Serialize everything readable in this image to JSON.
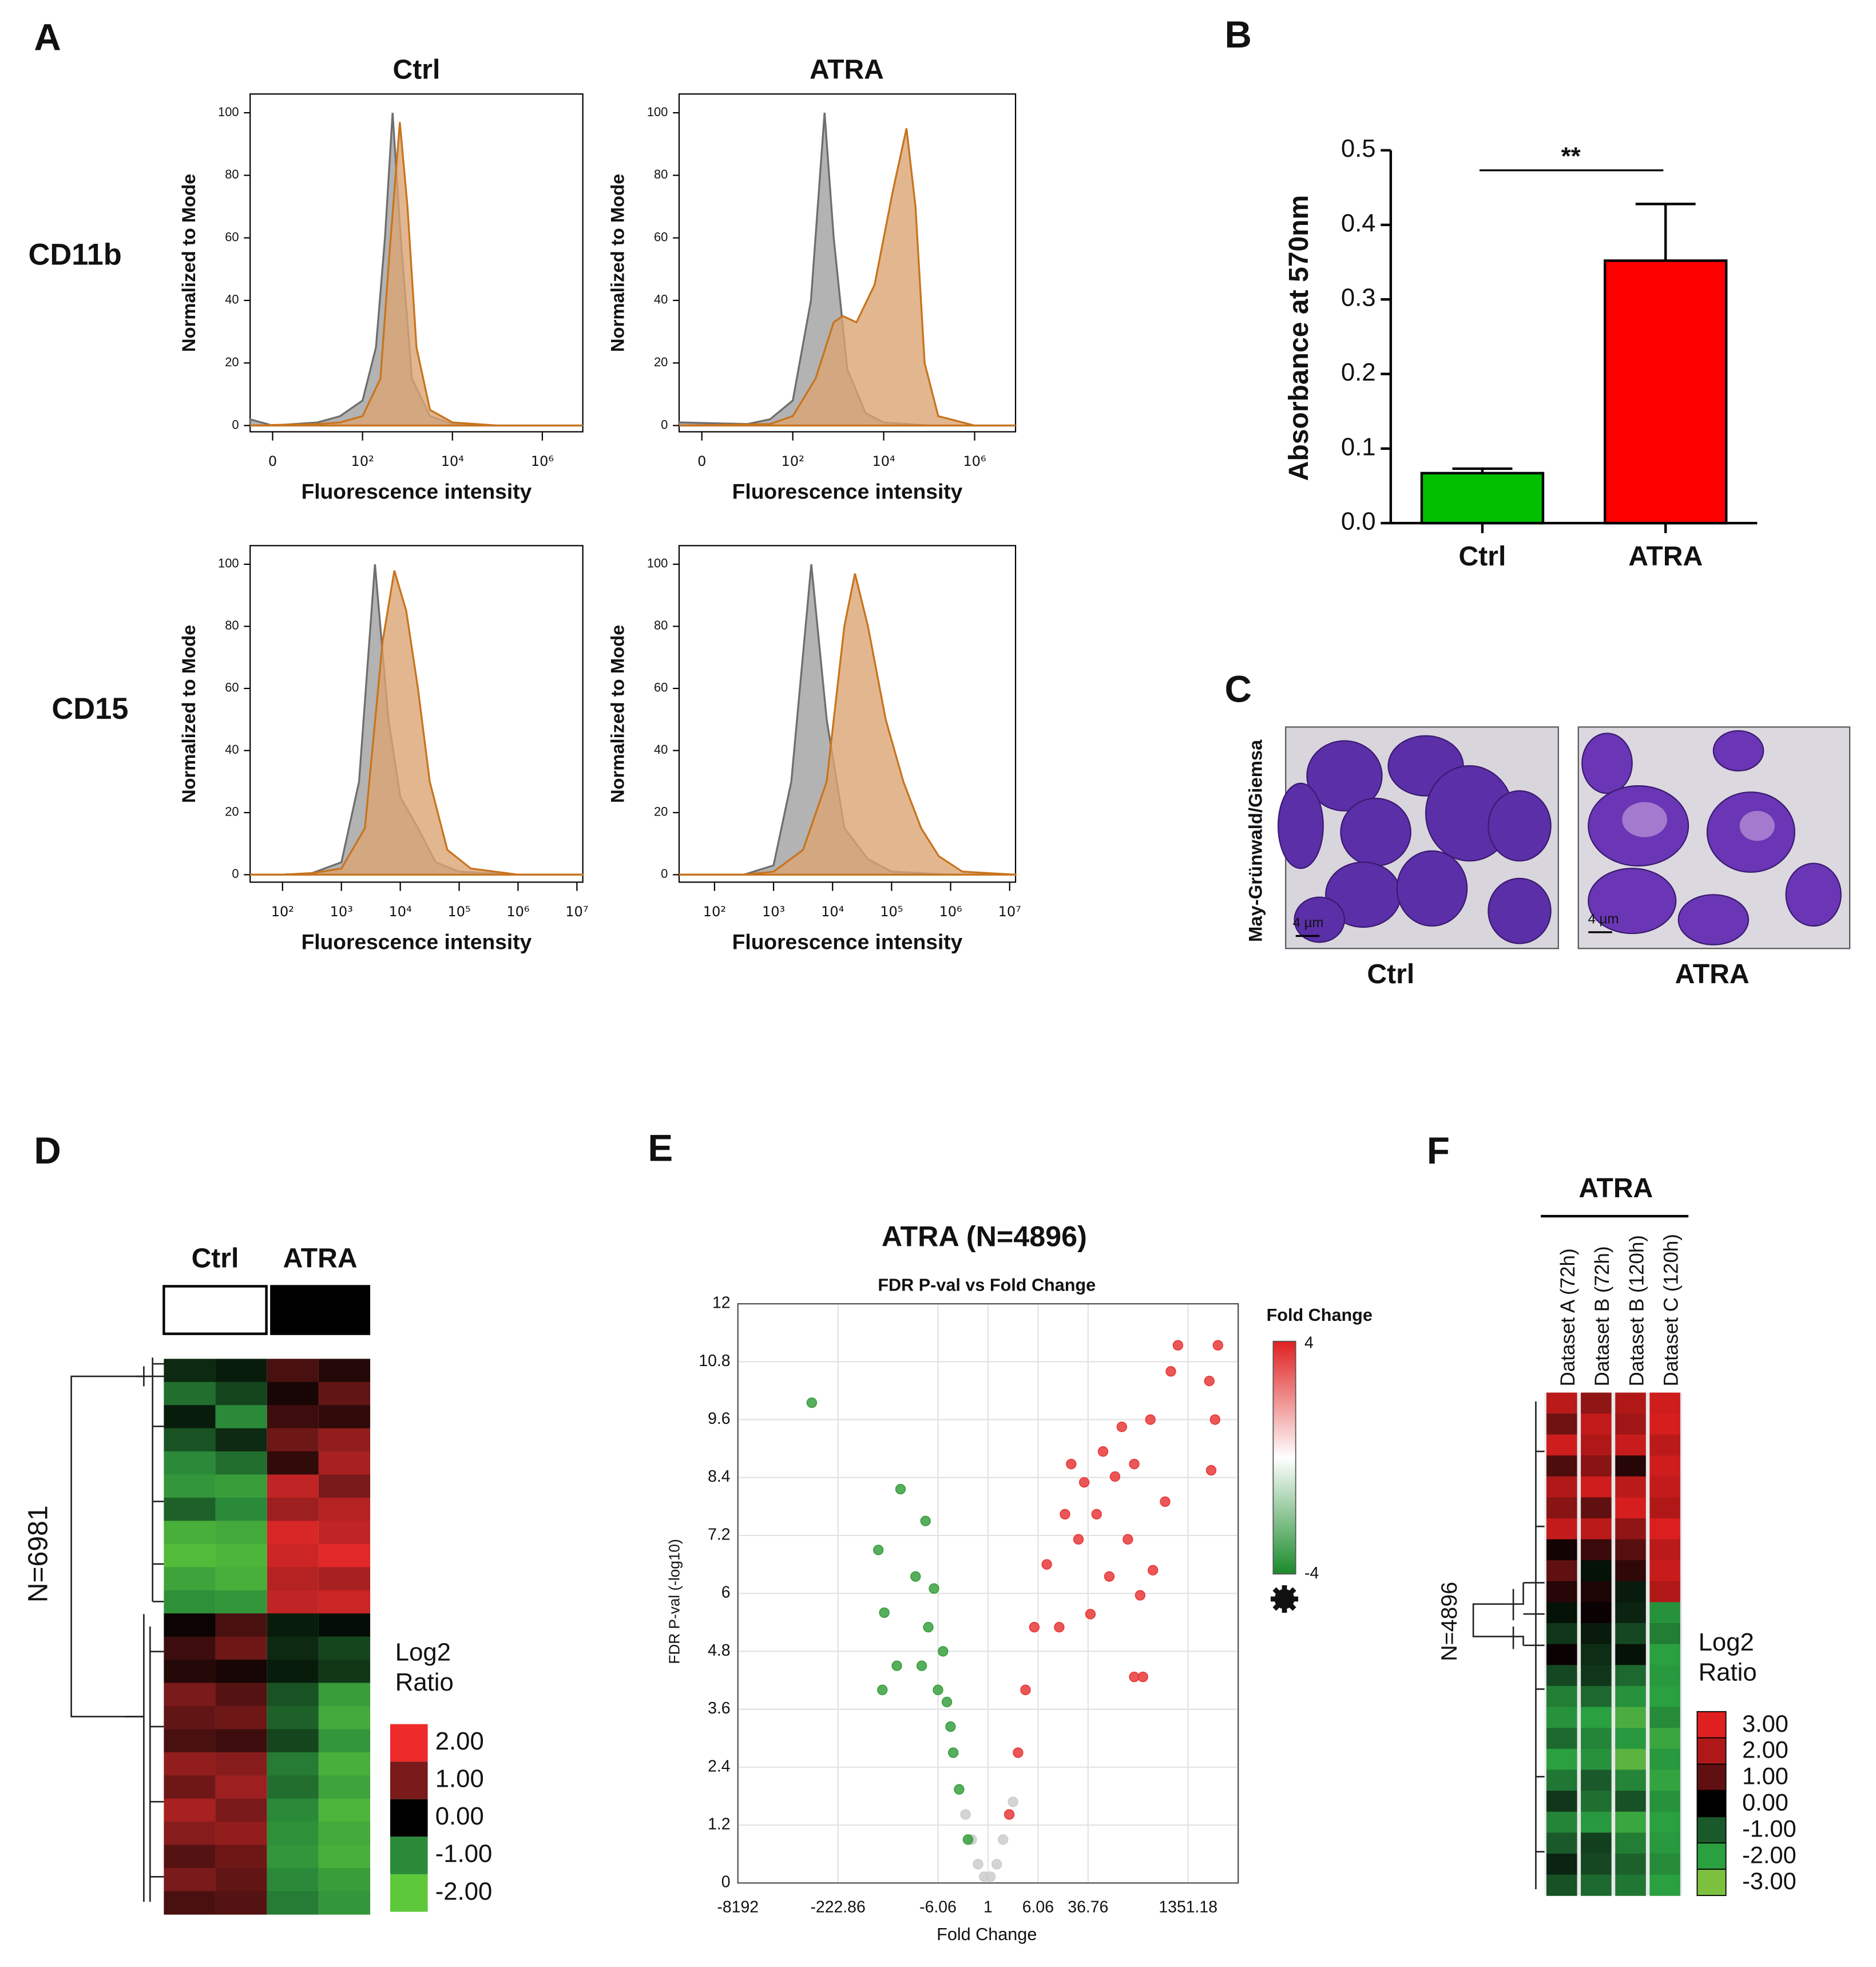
{
  "panel_labels": [
    "A",
    "B",
    "C",
    "D",
    "E",
    "F"
  ],
  "panel_a": {
    "columns": [
      "Ctrl",
      "ATRA"
    ],
    "rows": [
      "CD11b",
      "CD15"
    ]
  },
  "panel_c": {
    "ylabel": "May-Grünwald/Giemsa",
    "images": [
      {
        "label": "Ctrl",
        "scale_bar": "4 µm"
      },
      {
        "label": "ATRA",
        "scale_bar": "4 µm"
      }
    ]
  },
  "chart_data": [
    {
      "type": "density",
      "xlabel": "Fluorescence intensity",
      "ylabel": "Normalized to Mode",
      "xlim": [
        -0.5,
        6.9
      ],
      "ylim": [
        -2,
        106
      ],
      "xticks": [
        0,
        {
          "value": 2,
          "label": "10²"
        },
        {
          "value": 4,
          "label": "10⁴"
        },
        {
          "value": 6,
          "label": "10⁶"
        }
      ],
      "yticks": [
        0,
        20,
        40,
        60,
        80,
        100
      ],
      "series": [
        {
          "color": "#6e6e6e",
          "fill": "#a0a0a0",
          "x": [
            -0.5,
            0,
            1,
            1.5,
            2,
            2.3,
            2.5,
            2.67,
            2.85,
            3.1,
            3.5,
            4,
            5,
            6.9
          ],
          "values": [
            2,
            0,
            1,
            3,
            8,
            25,
            60,
            100,
            60,
            15,
            3,
            0.5,
            0,
            0
          ]
        },
        {
          "color": "#c8741e",
          "fill": "#dba574",
          "x": [
            -0.5,
            1,
            1.5,
            2,
            2.4,
            2.6,
            2.83,
            3,
            3.2,
            3.5,
            4,
            5,
            6.9
          ],
          "values": [
            0,
            0.5,
            1,
            3,
            15,
            55,
            97,
            70,
            25,
            5,
            1,
            0,
            0
          ]
        }
      ]
    },
    {
      "type": "density",
      "xlabel": "Fluorescence intensity",
      "ylabel": "Normalized to Mode",
      "xlim": [
        -0.5,
        6.9
      ],
      "ylim": [
        -2,
        106
      ],
      "xticks": [
        0,
        {
          "value": 2,
          "label": "10²"
        },
        {
          "value": 4,
          "label": "10⁴"
        },
        {
          "value": 6,
          "label": "10⁶"
        }
      ],
      "yticks": [
        0,
        20,
        40,
        60,
        80,
        100
      ],
      "series": [
        {
          "color": "#6e6e6e",
          "fill": "#a0a0a0",
          "x": [
            -0.5,
            1,
            1.5,
            2,
            2.4,
            2.7,
            2.9,
            3.2,
            3.6,
            4,
            5,
            6.9
          ],
          "values": [
            1,
            0.5,
            2,
            8,
            40,
            100,
            60,
            18,
            4,
            1,
            0,
            0
          ]
        },
        {
          "color": "#c8741e",
          "fill": "#dba574",
          "x": [
            -0.5,
            1.5,
            2,
            2.5,
            2.9,
            3.1,
            3.4,
            3.8,
            4.2,
            4.5,
            4.7,
            4.9,
            5.2,
            6,
            6.9
          ],
          "values": [
            0,
            0.5,
            3,
            15,
            33,
            35,
            33,
            45,
            75,
            95,
            70,
            20,
            3,
            0,
            0
          ]
        }
      ]
    },
    {
      "type": "density",
      "xlabel": "Fluorescence intensity",
      "ylabel": "Normalized to Mode",
      "xlim": [
        1.45,
        7.1
      ],
      "ylim": [
        -2.4,
        106
      ],
      "xticks": [
        {
          "value": 2,
          "label": "10²"
        },
        {
          "value": 3,
          "label": "10³"
        },
        {
          "value": 4,
          "label": "10⁴"
        },
        {
          "value": 5,
          "label": "10⁵"
        },
        {
          "value": 6,
          "label": "10⁶"
        },
        {
          "value": 7,
          "label": "10⁷"
        }
      ],
      "yticks": [
        0,
        20,
        40,
        60,
        80,
        100
      ],
      "series": [
        {
          "color": "#6e6e6e",
          "fill": "#a0a0a0",
          "x": [
            1.45,
            2,
            2.5,
            3,
            3.3,
            3.57,
            3.8,
            4,
            4.3,
            4.6,
            5,
            6,
            7.1
          ],
          "values": [
            0,
            0,
            0.5,
            4,
            30,
            100,
            50,
            25,
            15,
            4,
            1,
            0,
            0
          ]
        },
        {
          "color": "#c8741e",
          "fill": "#dba574",
          "x": [
            1.45,
            2,
            2.5,
            3,
            3.4,
            3.7,
            3.9,
            4.1,
            4.3,
            4.5,
            4.8,
            5.2,
            6,
            7.1
          ],
          "values": [
            0,
            0,
            0.5,
            2,
            15,
            75,
            98,
            85,
            60,
            30,
            8,
            2,
            0,
            0
          ]
        }
      ]
    },
    {
      "type": "density",
      "xlabel": "Fluorescence intensity",
      "ylabel": "Normalized to Mode",
      "xlim": [
        1.4,
        7.1
      ],
      "ylim": [
        -2.4,
        106
      ],
      "xticks": [
        {
          "value": 2,
          "label": "10²"
        },
        {
          "value": 3,
          "label": "10³"
        },
        {
          "value": 4,
          "label": "10⁴"
        },
        {
          "value": 5,
          "label": "10⁵"
        },
        {
          "value": 6,
          "label": "10⁶"
        },
        {
          "value": 7,
          "label": "10⁷"
        }
      ],
      "yticks": [
        0,
        20,
        40,
        60,
        80,
        100
      ],
      "series": [
        {
          "color": "#6e6e6e",
          "fill": "#a0a0a0",
          "x": [
            1.4,
            2.5,
            3,
            3.3,
            3.64,
            3.9,
            4.2,
            4.6,
            5,
            6,
            7.1
          ],
          "values": [
            0,
            0,
            3,
            30,
            100,
            50,
            15,
            5,
            1,
            0,
            0
          ]
        },
        {
          "color": "#c8741e",
          "fill": "#dba574",
          "x": [
            1.4,
            2.5,
            3,
            3.5,
            3.9,
            4.2,
            4.38,
            4.6,
            4.9,
            5.2,
            5.5,
            5.8,
            6.2,
            7.1
          ],
          "values": [
            0,
            0,
            1,
            8,
            30,
            80,
            97,
            80,
            50,
            30,
            15,
            6,
            1,
            0
          ]
        }
      ]
    },
    {
      "type": "bar",
      "ylabel": "Absorbance at 570nm",
      "categories": [
        "Ctrl",
        "ATRA"
      ],
      "values": [
        0.067,
        0.352
      ],
      "errors": [
        0.006,
        0.076
      ],
      "colors": [
        "#00c000",
        "#ff0000"
      ],
      "ylim": [
        0,
        0.5
      ],
      "yticks": [
        {
          "value": 0,
          "label": "0.0"
        },
        0.1,
        0.2,
        0.3,
        0.4,
        0.5
      ],
      "annotation": "**"
    },
    {
      "type": "heatmap",
      "n_label": "N=6981",
      "groups": [
        {
          "label": "Ctrl",
          "color": "#ffffff"
        },
        {
          "label": "ATRA",
          "color": "#000000"
        }
      ],
      "legend_title": [
        "Log2",
        "Ratio"
      ],
      "legend_ticks": [
        {
          "value": 2,
          "label": "2.00"
        },
        {
          "value": 1,
          "label": "1.00"
        },
        {
          "value": 0,
          "label": "0.00"
        },
        {
          "value": -1,
          "label": "-1.00"
        },
        {
          "value": -2,
          "label": "-2.00"
        }
      ],
      "legend_colors": [
        "#ee2a2a",
        "#7a1a1a",
        "#000000",
        "#2a8a3a",
        "#5cc83a"
      ],
      "values": [
        [
          -0.3,
          -0.2,
          0.6,
          0.3
        ],
        [
          -0.8,
          -0.5,
          0.2,
          0.8
        ],
        [
          -0.2,
          -1.0,
          0.5,
          0.4
        ],
        [
          -0.6,
          -0.3,
          0.9,
          1.2
        ],
        [
          -1.0,
          -0.8,
          0.4,
          1.4
        ],
        [
          -1.2,
          -1.3,
          1.6,
          1.0
        ],
        [
          -0.7,
          -1.0,
          1.3,
          1.5
        ],
        [
          -1.6,
          -1.5,
          1.8,
          1.6
        ],
        [
          -1.8,
          -1.7,
          1.7,
          1.9
        ],
        [
          -1.4,
          -1.6,
          1.5,
          1.4
        ],
        [
          -1.1,
          -1.2,
          1.6,
          1.7
        ],
        [
          0.1,
          0.6,
          -0.2,
          -0.1
        ],
        [
          0.5,
          0.9,
          -0.3,
          -0.5
        ],
        [
          0.3,
          0.2,
          -0.2,
          -0.4
        ],
        [
          1.0,
          0.7,
          -0.6,
          -1.3
        ],
        [
          0.8,
          0.9,
          -0.7,
          -1.5
        ],
        [
          0.6,
          0.5,
          -0.5,
          -1.2
        ],
        [
          1.2,
          1.1,
          -0.9,
          -1.6
        ],
        [
          0.9,
          1.3,
          -0.8,
          -1.4
        ],
        [
          1.4,
          1.0,
          -1.0,
          -1.7
        ],
        [
          1.1,
          1.2,
          -1.1,
          -1.5
        ],
        [
          0.7,
          0.9,
          -1.2,
          -1.6
        ],
        [
          1.0,
          0.8,
          -1.0,
          -1.3
        ],
        [
          0.6,
          0.7,
          -0.9,
          -1.2
        ]
      ]
    },
    {
      "type": "scatter",
      "title": "ATRA (N=4896)",
      "subtitle": "FDR P-val vs Fold Change",
      "xlabel": "Fold Change",
      "ylabel": "FDR P-val (-log10)",
      "xscale": "signed-log2",
      "xlim": [
        -8192,
        8192
      ],
      "xticks": [
        -8192,
        -222.86,
        -6.06,
        1,
        6.06,
        36.76,
        1351.18
      ],
      "ylim": [
        0,
        12
      ],
      "yticks": [
        0,
        1.2,
        2.4,
        3.6,
        4.8,
        6,
        7.2,
        8.4,
        9.6,
        10.8,
        12
      ],
      "grid": true,
      "colorbar": {
        "title": "Fold Change",
        "ticks": [
          4,
          -4
        ],
        "colors": [
          "#e02020",
          "#ffffff",
          "#1a8a2a"
        ]
      },
      "series": [
        {
          "color": "#cccccc",
          "x": [
            -1.43,
            1.37,
            -1.15,
            1.09,
            -1.8,
            1.72,
            -2.25,
            2.46
          ],
          "values": [
            0.39,
            0.39,
            0.13,
            0.13,
            0.9,
            0.9,
            1.42,
            1.68
          ]
        },
        {
          "color": "#3aa040",
          "x": [
            -572,
            -23.4,
            -9.5,
            -52,
            -42,
            -26.7,
            -45,
            -7,
            -5.06,
            -3.86,
            -2.83,
            -2.06,
            -13.6,
            -8.6,
            -6.06,
            -10.9,
            -3.5,
            -4.4
          ],
          "values": [
            9.95,
            8.16,
            7.5,
            6.9,
            5.6,
            4.5,
            4.0,
            6.1,
            4.8,
            3.24,
            1.94,
            0.9,
            6.35,
            5.3,
            4.0,
            4.5,
            2.7,
            3.75
          ]
        },
        {
          "color": "#e83a3a",
          "x": [
            936,
            3956,
            2900,
            3566,
            3100,
            724,
            347,
            124,
            63,
            32,
            16,
            8.3,
            5.3,
            3.86,
            2.95,
            2.15,
            194,
            265,
            240,
            380,
            590,
            154,
            79,
            40,
            26,
            13,
            50,
            97,
            194,
            20
          ],
          "values": [
            11.14,
            11.14,
            10.4,
            9.6,
            8.55,
            10.6,
            9.6,
            9.45,
            8.94,
            8.3,
            7.64,
            6.6,
            5.3,
            4.0,
            2.7,
            1.42,
            4.27,
            4.27,
            5.96,
            6.48,
            7.9,
            7.12,
            6.35,
            5.57,
            7.12,
            5.3,
            7.64,
            8.42,
            8.68,
            8.68
          ]
        }
      ]
    },
    {
      "type": "heatmap",
      "title": "ATRA",
      "n_label": "N=4896",
      "columns": [
        "Dataset A (72h)",
        "Dataset B (72h)",
        "Dataset B (120h)",
        "Dataset C (120h)"
      ],
      "legend_title": [
        "Log2",
        "Ratio"
      ],
      "legend_ticks": [
        {
          "value": 3,
          "label": "3.00"
        },
        {
          "value": 2,
          "label": "2.00"
        },
        {
          "value": 1,
          "label": "1.00"
        },
        {
          "value": 0,
          "label": "0.00"
        },
        {
          "value": -1,
          "label": "-1.00"
        },
        {
          "value": -2,
          "label": "-2.00"
        },
        {
          "value": -3,
          "label": "-3.00"
        }
      ],
      "legend_colors": [
        "#e02020",
        "#b01818",
        "#601010",
        "#000000",
        "#1a5a2a",
        "#2aa040",
        "#7cc040"
      ],
      "values": [
        [
          2.2,
          1.6,
          2.0,
          2.6
        ],
        [
          1.2,
          2.4,
          1.8,
          2.8
        ],
        [
          2.6,
          2.0,
          2.5,
          2.2
        ],
        [
          0.8,
          1.5,
          0.4,
          2.6
        ],
        [
          2.0,
          2.6,
          2.2,
          2.4
        ],
        [
          1.5,
          1.0,
          2.8,
          2.0
        ],
        [
          2.4,
          2.2,
          1.6,
          2.9
        ],
        [
          0.2,
          0.6,
          0.9,
          2.2
        ],
        [
          1.0,
          -0.2,
          0.5,
          2.5
        ],
        [
          0.4,
          0.3,
          -0.3,
          2.0
        ],
        [
          -0.2,
          0.1,
          -0.4,
          -1.8
        ],
        [
          -0.6,
          -0.3,
          -0.8,
          -1.5
        ],
        [
          0.1,
          -0.5,
          -0.2,
          -2.0
        ],
        [
          -0.8,
          -0.6,
          -1.2,
          -1.9
        ],
        [
          -1.5,
          -1.2,
          -1.8,
          -2.0
        ],
        [
          -1.8,
          -2.0,
          -2.4,
          -1.7
        ],
        [
          -1.2,
          -1.6,
          -1.9,
          -2.2
        ],
        [
          -2.0,
          -1.8,
          -2.6,
          -1.9
        ],
        [
          -1.4,
          -1.0,
          -1.6,
          -2.1
        ],
        [
          -0.6,
          -1.3,
          -0.9,
          -1.8
        ],
        [
          -1.6,
          -1.9,
          -2.2,
          -2.0
        ],
        [
          -1.0,
          -0.7,
          -1.5,
          -1.9
        ],
        [
          -0.4,
          -0.8,
          -1.1,
          -1.7
        ],
        [
          -0.9,
          -1.2,
          -1.4,
          -2.0
        ]
      ]
    }
  ]
}
